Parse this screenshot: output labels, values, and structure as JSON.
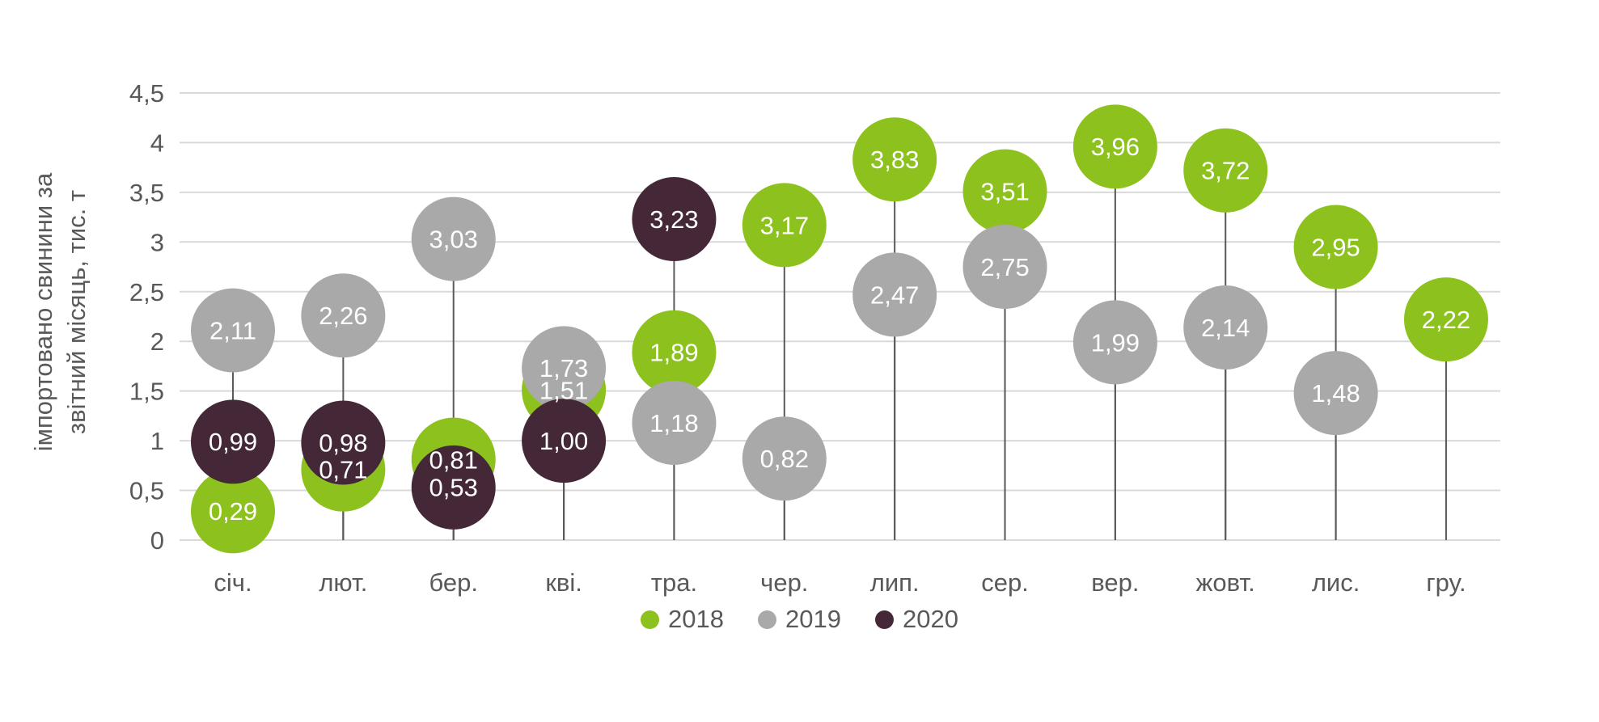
{
  "page": {
    "background": "#ffffff"
  },
  "chart_data": {
    "type": "scatter",
    "variant": "lollipop-bubble",
    "title": "",
    "ylabel_lines": [
      "імпортовано свинини за",
      "звітний місяць, тис. т"
    ],
    "ylabel_full": "імпортовано свинини за звітний місяць, тис. т",
    "ylim": [
      0,
      4.5
    ],
    "ytick_step": 0.5,
    "ytick_labels": [
      "0",
      "0,5",
      "1",
      "1,5",
      "2",
      "2,5",
      "3",
      "3,5",
      "4",
      "4,5"
    ],
    "grid": true,
    "decimal_separator": ",",
    "categories": [
      "січ.",
      "лют.",
      "бер.",
      "кві.",
      "тра.",
      "чер.",
      "лип.",
      "сер.",
      "вер.",
      "жовт.",
      "лис.",
      "гру."
    ],
    "series": [
      {
        "name": "2018",
        "color": "#8dc21e",
        "values": [
          0.29,
          0.71,
          0.81,
          1.51,
          1.89,
          3.17,
          3.83,
          3.51,
          3.96,
          3.72,
          2.95,
          2.22
        ]
      },
      {
        "name": "2019",
        "color": "#a9a9a9",
        "values": [
          2.11,
          2.26,
          3.03,
          1.73,
          1.18,
          0.82,
          2.47,
          2.75,
          1.99,
          2.14,
          1.48,
          null
        ]
      },
      {
        "name": "2020",
        "color": "#452838",
        "values": [
          0.99,
          0.98,
          0.53,
          1.0,
          3.23,
          null,
          null,
          null,
          null,
          null,
          null,
          null
        ]
      }
    ],
    "legend": {
      "position": "bottom",
      "labels": [
        "2018",
        "2019",
        "2020"
      ]
    },
    "colors": {
      "axis_text": "#595959",
      "gridline": "#d9d9d9",
      "stem": "#595959",
      "bubble_label": "#ffffff"
    }
  }
}
